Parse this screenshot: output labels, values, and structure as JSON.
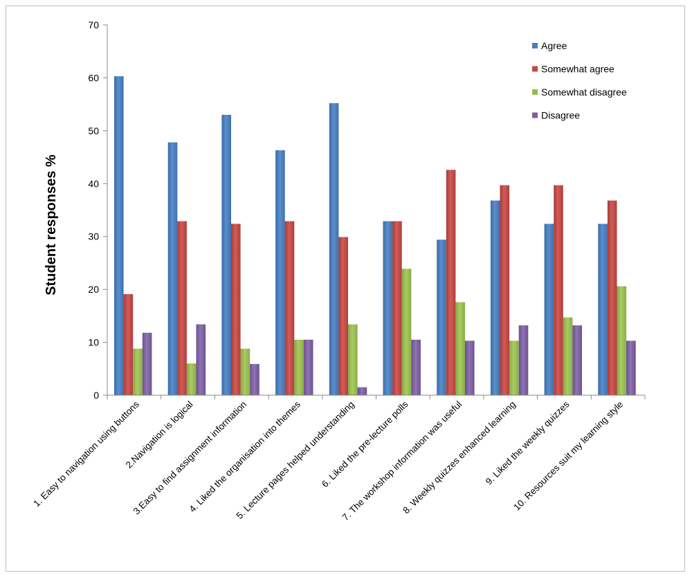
{
  "chart_data": {
    "type": "bar",
    "title": "",
    "xlabel": "",
    "ylabel": "Student responses %",
    "ylim": [
      0,
      70
    ],
    "yticks": [
      0,
      10,
      20,
      30,
      40,
      50,
      60,
      70
    ],
    "grid": false,
    "legend_position": "top-right",
    "categories": [
      "1. Easy to navigation using buttons",
      "2.Navigation is logical",
      "3.Easy to find assignment information",
      "4. Liked the organisation into themes",
      "5. Lecture pages helped understanding",
      "6. Liked the pre-lecture polls",
      "7. The workshop information was useful",
      "8. Weekly quizzes enhanced learning",
      "9. Liked the weekly quizzes",
      "10. Resources suit my learning style"
    ],
    "series": [
      {
        "name": "Agree",
        "color": "#4a7ebb",
        "values": [
          60.3,
          47.8,
          53.0,
          46.3,
          55.2,
          32.9,
          29.4,
          36.8,
          32.4,
          32.4
        ]
      },
      {
        "name": "Somewhat agree",
        "color": "#be4b48",
        "values": [
          19.1,
          32.9,
          32.4,
          32.9,
          29.9,
          32.9,
          42.6,
          39.7,
          39.7,
          36.8
        ]
      },
      {
        "name": "Somewhat disagree",
        "color": "#98b954",
        "values": [
          8.8,
          6.0,
          8.8,
          10.5,
          13.4,
          23.9,
          17.6,
          10.3,
          14.7,
          20.6
        ]
      },
      {
        "name": "Disagree",
        "color": "#7d60a0",
        "values": [
          11.8,
          13.4,
          5.9,
          10.5,
          1.5,
          10.5,
          10.3,
          13.2,
          13.2,
          10.3
        ]
      }
    ]
  }
}
